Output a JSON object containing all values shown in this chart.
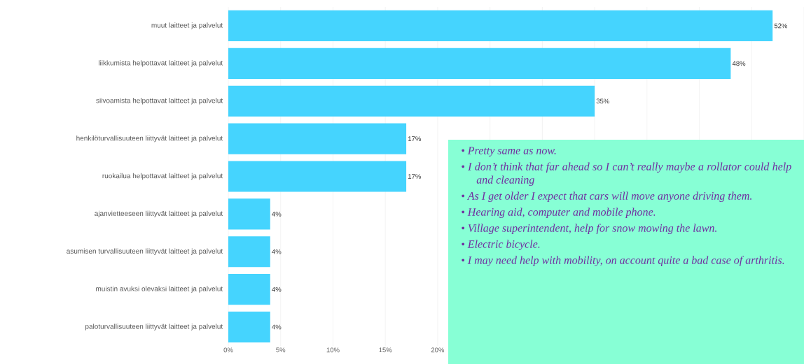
{
  "chart_data": {
    "type": "bar",
    "orientation": "horizontal",
    "categories": [
      "muut laitteet ja palvelut",
      "liikkumista helpottavat laitteet ja palvelut",
      "siivoamista helpottavat laitteet ja palvelut",
      "henkilöturvallisuuteen liittyvät laitteet ja palvelut",
      "ruokailua helpottavat laitteet ja palvelut",
      "ajanvietteeseen liittyvät laitteet ja palvelut",
      "asumisen turvallisuuteen liittyvät laitteet ja palvelut",
      "muistin avuksi olevaksi laitteet ja palvelut",
      "paloturvallisuuteen liittyvät laitteet ja palvelut"
    ],
    "values": [
      52,
      48,
      35,
      17,
      17,
      4,
      4,
      4,
      4
    ],
    "value_labels": [
      "52%",
      "48%",
      "35%",
      "17%",
      "17%",
      "4%",
      "4%",
      "4%",
      "4%"
    ],
    "color": "#45d4fe",
    "xlim": [
      0,
      55
    ],
    "xticks": [
      {
        "value": 0,
        "label": "0%"
      },
      {
        "value": 5,
        "label": "5%"
      },
      {
        "value": 10,
        "label": "10%"
      },
      {
        "value": 15,
        "label": "15%"
      },
      {
        "value": 20,
        "label": "20%"
      },
      {
        "value": 25,
        "label": null
      },
      {
        "value": 30,
        "label": null
      },
      {
        "value": 35,
        "label": null
      },
      {
        "value": 40,
        "label": null
      },
      {
        "value": 45,
        "label": null
      },
      {
        "value": 50,
        "label": null
      },
      {
        "value": 55,
        "label": null
      }
    ],
    "grid": "x",
    "annotations": [
      "• Pretty same as now.",
      "• I don’t think that far ahead so I can’t really maybe a rollator could help and cleaning",
      "• As I get older I expect that cars will move anyone driving them.",
      "• Hearing aid, computer and mobile phone.",
      "• Village superintendent, help for snow mowing the lawn.",
      "• Electric bicycle.",
      "• I may need help with mobility, on account quite a bad case of arthritis."
    ]
  }
}
